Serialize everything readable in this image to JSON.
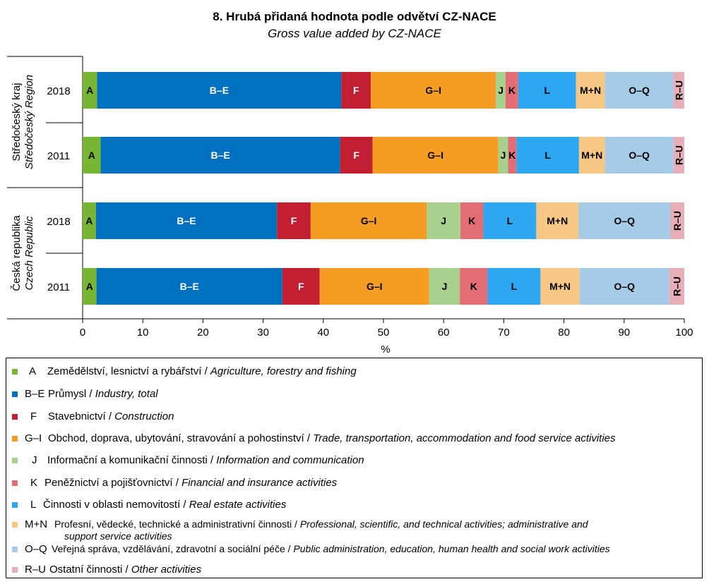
{
  "chart_data": {
    "type": "bar",
    "orientation": "horizontal",
    "stacked": true,
    "title": "8. Hrubá přidaná hodnota podle odvětví CZ-NACE",
    "subtitle": "Gross value added by CZ-NACE",
    "xlabel": "%",
    "xlim": [
      0,
      100
    ],
    "xticks": [
      "0",
      "10",
      "20",
      "30",
      "40",
      "50",
      "60",
      "70",
      "80",
      "90",
      "100"
    ],
    "groups": [
      {
        "name_cs": "Středočeský kraj",
        "name_en": "Středočeský Region"
      },
      {
        "name_cs": "Česká republika",
        "name_en": "Czech Republic"
      }
    ],
    "categories": [
      {
        "label": "2018",
        "group": 0
      },
      {
        "label": "2011",
        "group": 0
      },
      {
        "label": "2018",
        "group": 1
      },
      {
        "label": "2011",
        "group": 1
      }
    ],
    "series": [
      {
        "code": "A",
        "color": "#78b532",
        "values": [
          2.4,
          3.0,
          2.2,
          2.3
        ]
      },
      {
        "code": "B–E",
        "color": "#0070c0",
        "values": [
          40.6,
          39.8,
          30.1,
          30.9
        ]
      },
      {
        "code": "F",
        "color": "#c21f32",
        "values": [
          4.9,
          5.4,
          5.6,
          6.2
        ]
      },
      {
        "code": "G–I",
        "color": "#f59c23",
        "values": [
          20.8,
          20.9,
          19.3,
          18.2
        ]
      },
      {
        "code": "J",
        "color": "#a9d18e",
        "values": [
          1.6,
          1.6,
          5.6,
          5.1
        ]
      },
      {
        "code": "K",
        "color": "#e36d75",
        "values": [
          2.1,
          1.4,
          3.8,
          4.6
        ]
      },
      {
        "code": "L",
        "color": "#2ea7f2",
        "values": [
          9.6,
          10.4,
          8.8,
          8.8
        ]
      },
      {
        "code": "M+N",
        "color": "#f9c784",
        "values": [
          4.8,
          4.3,
          7.0,
          6.5
        ]
      },
      {
        "code": "O–Q",
        "color": "#a6cbe6",
        "values": [
          11.4,
          11.4,
          15.3,
          14.9
        ]
      },
      {
        "code": "R–U",
        "color": "#e8aeb8",
        "values": [
          1.8,
          1.8,
          2.3,
          2.5
        ]
      }
    ]
  },
  "legend": [
    {
      "code": "A",
      "cs": "Zemědělství,  lesnictví  a rybářství  /",
      "en": "Agriculture, forestry and fishing"
    },
    {
      "code": "B–E",
      "cs": "Průmysl /",
      "en": "Industry, total"
    },
    {
      "code": "F",
      "cs": "Stavebnictví  /",
      "en": "Construction"
    },
    {
      "code": "G–I",
      "cs": "Obchod, doprava, ubytování, stravování  a pohostinství  /",
      "en": "Trade, transportation, accommodation and food service activities"
    },
    {
      "code": "J",
      "cs": "Informační a komunikační činnosti /",
      "en": "Information and communication"
    },
    {
      "code": "K",
      "cs": "Peněžnictví a pojišťovnictví  /",
      "en": "Financial and insurance activities"
    },
    {
      "code": "L",
      "cs": "Činnosti v oblasti nemovitostí  /",
      "en": "Real estate activities"
    },
    {
      "code": "M+N",
      "cs": "Profesní, vědecké, technické a administrativní činnosti /",
      "en": "Professional, scientific, and technical activities; administrative and",
      "en2": "support service activities"
    },
    {
      "code": "O–Q",
      "cs": "Veřejná správa, vzdělávání,  zdravotní a sociální péče /",
      "en": "Public administration, education, human health and social work activities"
    },
    {
      "code": "R–U",
      "cs": "Ostatní činnosti /",
      "en": "Other activities"
    }
  ]
}
